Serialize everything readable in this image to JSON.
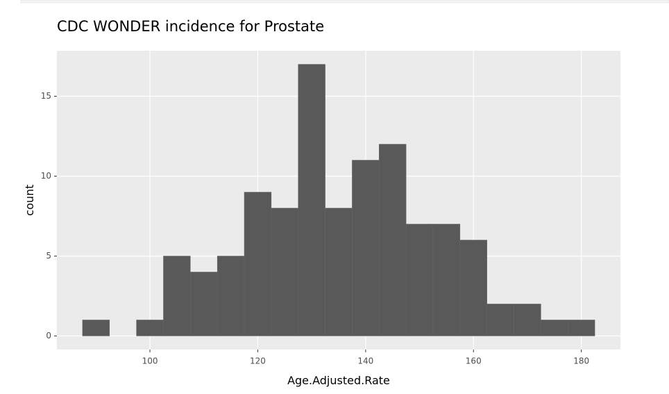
{
  "chart_data": {
    "type": "histogram",
    "title": "CDC WONDER incidence for Prostate",
    "x_label": "Age.Adjusted.Rate",
    "y_label": "count",
    "bins": [
      87.5,
      92.5,
      97.5,
      102.5,
      107.5,
      112.5,
      117.5,
      122.5,
      127.5,
      132.5,
      137.5,
      142.5,
      147.5,
      152.5,
      157.5,
      162.5,
      167.5,
      172.5,
      177.5,
      182.5
    ],
    "counts": [
      1,
      0,
      1,
      5,
      4,
      5,
      9,
      8,
      17,
      8,
      11,
      12,
      7,
      7,
      6,
      2,
      2,
      1,
      1
    ],
    "color": "#595959",
    "xlim": [
      82.75,
      187.25
    ],
    "xticks": [
      100,
      120,
      140,
      160,
      180
    ],
    "ylim": [
      -0.85,
      17.85
    ],
    "yticks": [
      0,
      5,
      10,
      15
    ],
    "grid": true
  }
}
